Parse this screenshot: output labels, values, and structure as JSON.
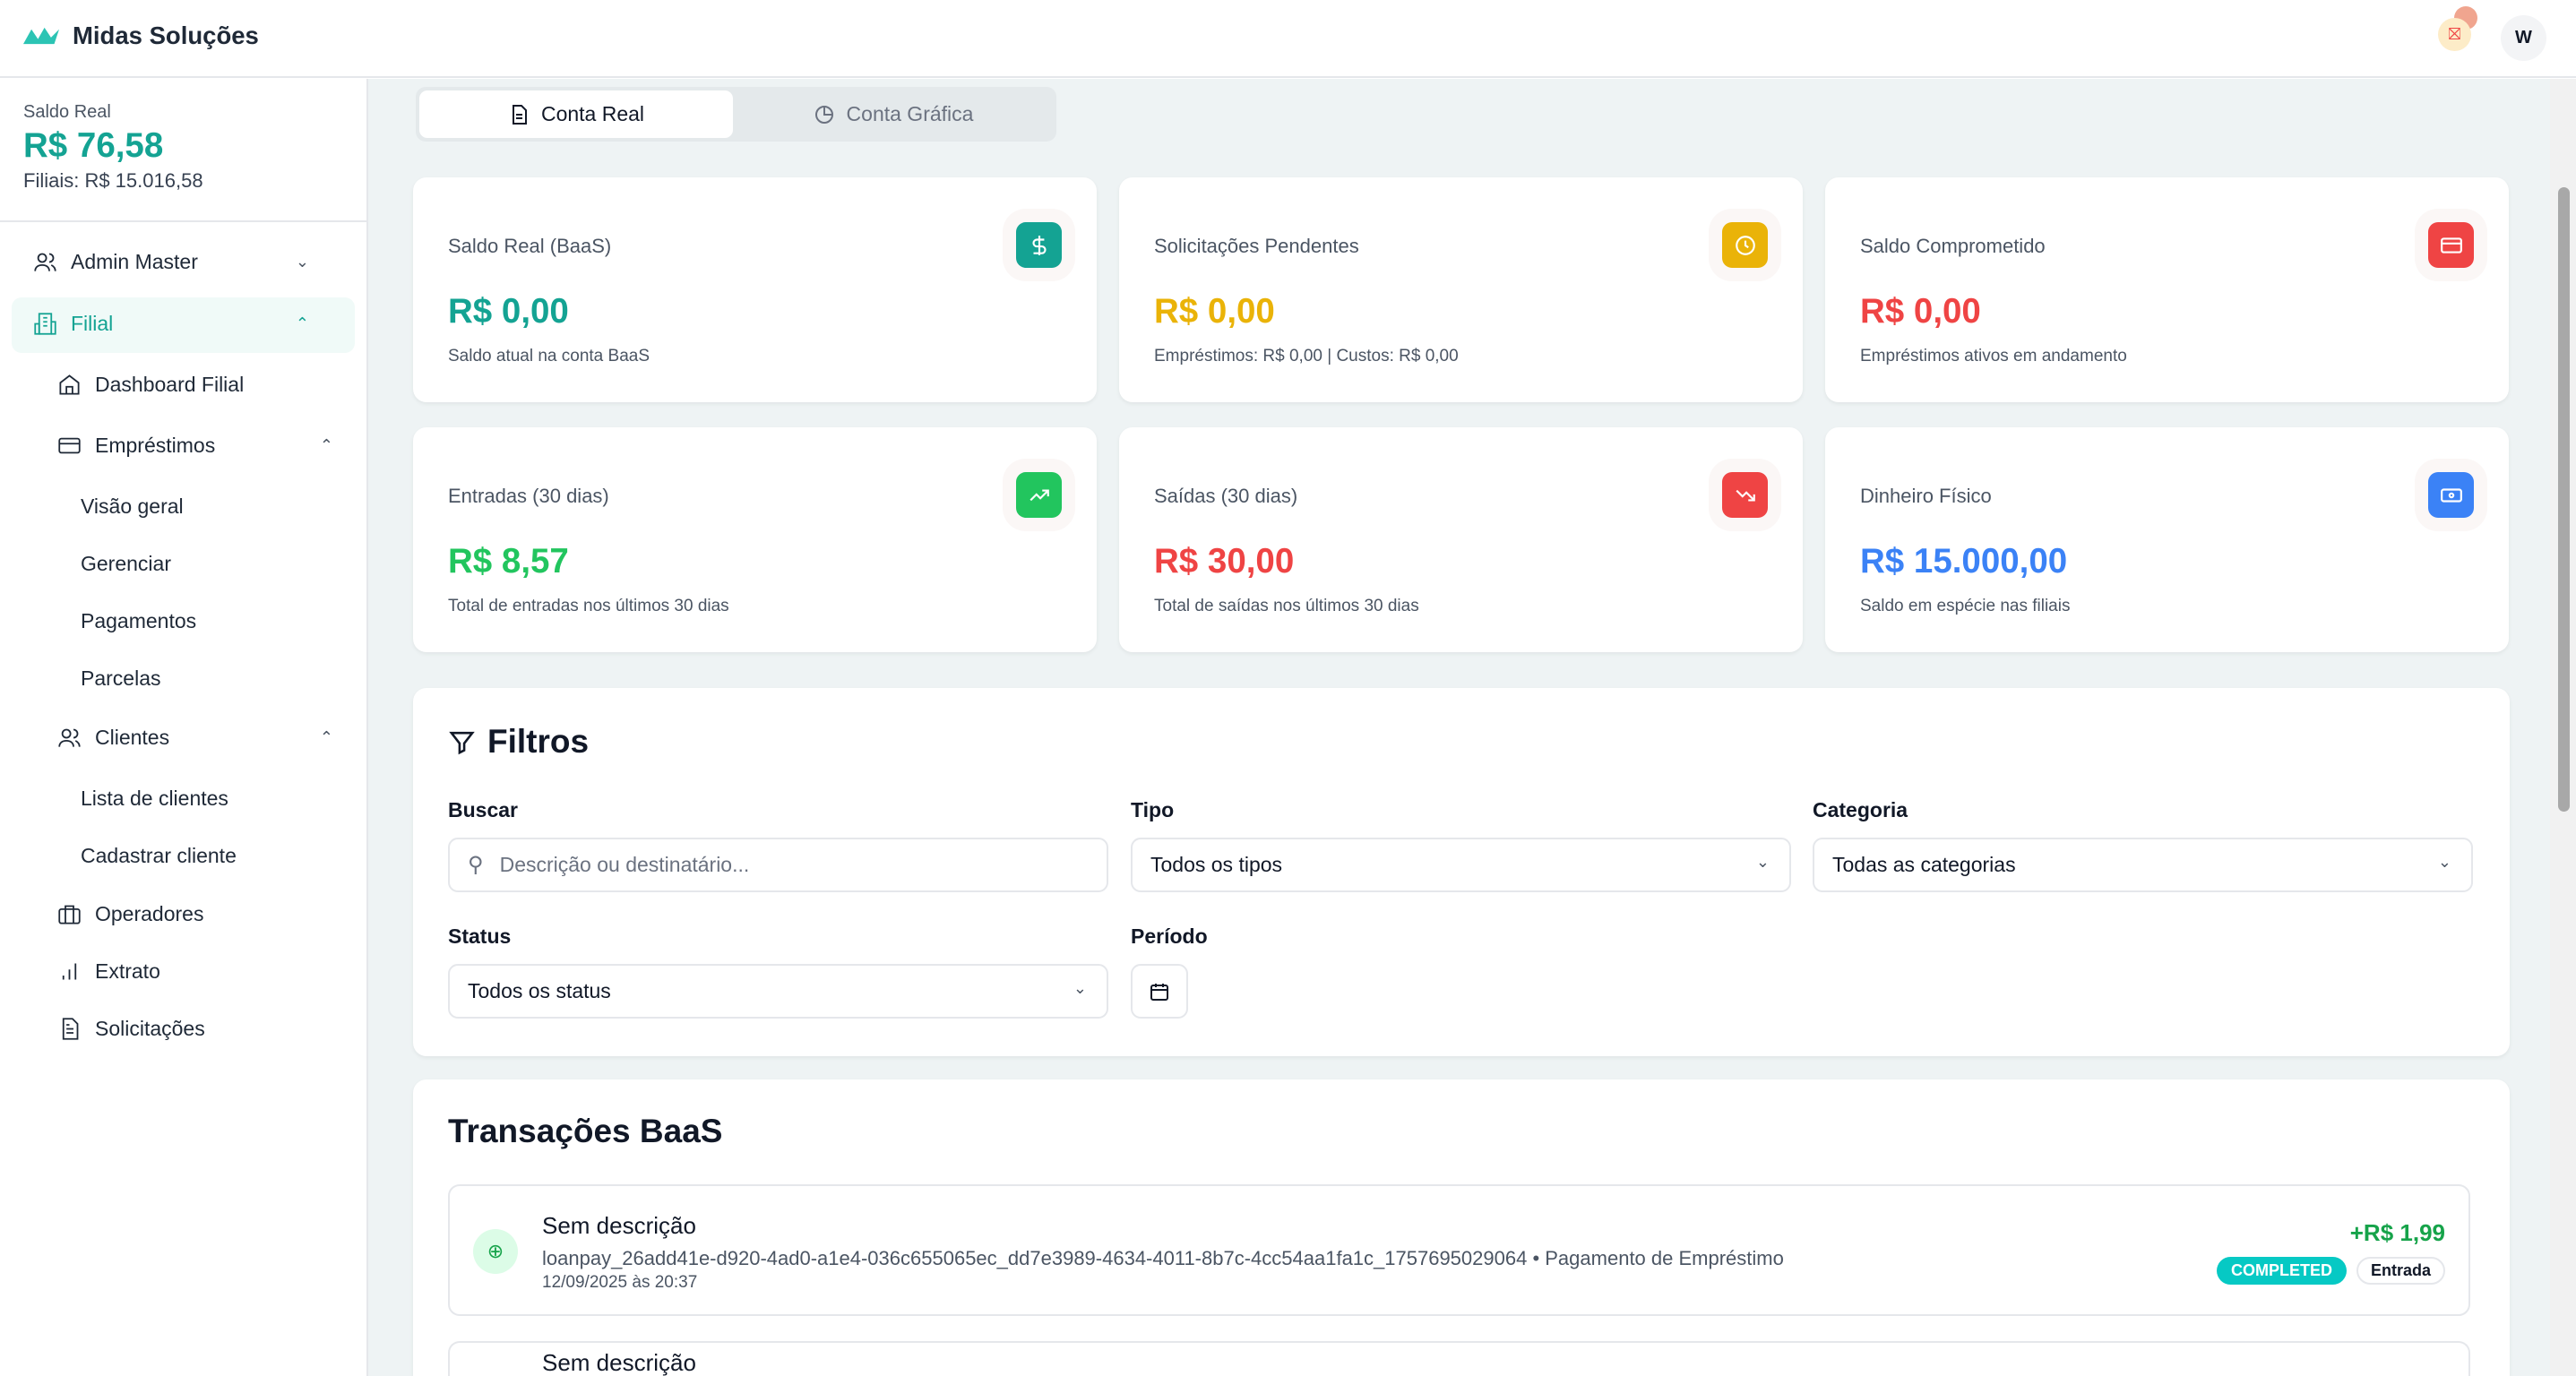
{
  "header": {
    "brand": "Midas Soluções",
    "avatar_initial": "W",
    "colors": {
      "accent": "#14a393"
    }
  },
  "sidebar": {
    "balance_label": "Saldo Real",
    "balance_value": "R$ 76,58",
    "branches": "Filiais: R$ 15.016,58",
    "items": [
      {
        "label": "Admin Master",
        "icon": "users-icon"
      },
      {
        "label": "Filial",
        "icon": "building-icon"
      },
      {
        "label": "Dashboard Filial",
        "icon": "home-icon"
      },
      {
        "label": "Empréstimos",
        "icon": "credit-card-icon"
      },
      {
        "label": "Visão geral"
      },
      {
        "label": "Gerenciar"
      },
      {
        "label": "Pagamentos"
      },
      {
        "label": "Parcelas"
      },
      {
        "label": "Clientes",
        "icon": "users-icon"
      },
      {
        "label": "Lista de clientes"
      },
      {
        "label": "Cadastrar cliente"
      },
      {
        "label": "Operadores",
        "icon": "briefcase-icon"
      },
      {
        "label": "Extrato",
        "icon": "bar-chart-icon"
      },
      {
        "label": "Solicitações",
        "icon": "file-icon"
      }
    ]
  },
  "tabs": [
    {
      "label": "Conta Real",
      "active": true
    },
    {
      "label": "Conta Gráfica",
      "active": false
    }
  ],
  "cards": [
    {
      "title": "Saldo Real (BaaS)",
      "value": "R$ 0,00",
      "sub": "Saldo atual na conta BaaS",
      "color": "#14a393",
      "icon": "dollar-icon"
    },
    {
      "title": "Solicitações Pendentes",
      "value": "R$ 0,00",
      "sub": "Empréstimos: R$ 0,00 | Custos: R$ 0,00",
      "color": "#eab308",
      "icon": "clock-icon"
    },
    {
      "title": "Saldo Comprometido",
      "value": "R$ 0,00",
      "sub": "Empréstimos ativos em andamento",
      "color": "#ef4444",
      "icon": "credit-card-icon"
    },
    {
      "title": "Entradas (30 dias)",
      "value": "R$ 8,57",
      "sub": "Total de entradas nos últimos 30 dias",
      "color": "#22c55e",
      "icon": "trending-up-icon"
    },
    {
      "title": "Saídas (30 dias)",
      "value": "R$ 30,00",
      "sub": "Total de saídas nos últimos 30 dias",
      "color": "#ef4444",
      "icon": "trending-down-icon"
    },
    {
      "title": "Dinheiro Físico",
      "value": "R$ 15.000,00",
      "sub": "Saldo em espécie nas filiais",
      "color": "#3b82f6",
      "icon": "banknote-icon"
    }
  ],
  "filters": {
    "title": "Filtros",
    "search_label": "Buscar",
    "search_placeholder": "Descrição ou destinatário...",
    "type_label": "Tipo",
    "type_value": "Todos os tipos",
    "category_label": "Categoria",
    "category_value": "Todas as categorias",
    "status_label": "Status",
    "status_value": "Todos os status",
    "period_label": "Período"
  },
  "transactions": {
    "title": "Transações BaaS",
    "items": [
      {
        "title": "Sem descrição",
        "detail": "loanpay_26add41e-d920-4ad0-a1e4-036c655065ec_dd7e3989-4634-4011-8b7c-4cc54aa1fa1c_1757695029064 • Pagamento de Empréstimo",
        "date": "12/09/2025 às 20:37",
        "amount": "+R$ 1,99",
        "status": "COMPLETED",
        "kind": "Entrada"
      },
      {
        "title": "Sem descrição"
      }
    ]
  }
}
